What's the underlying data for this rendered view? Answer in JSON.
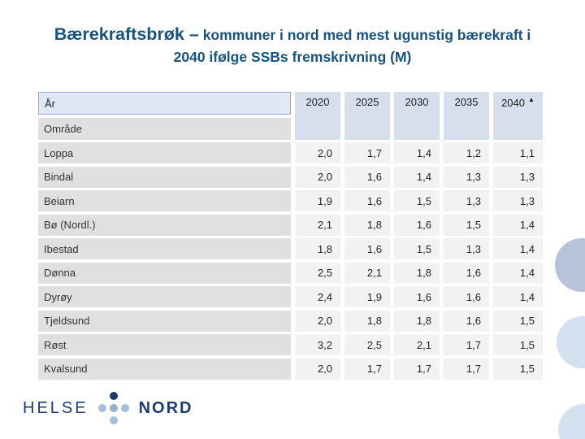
{
  "slide": {
    "title": {
      "part1": "Bærekraftsbrøk –",
      "part2": "kommuner i nord med mest ugunstig bærekraft i",
      "line2": "2040 ifølge SSBs fremskrivning (M)"
    },
    "logo": {
      "left": "HELSE",
      "right": "NORD"
    },
    "colors": {
      "title_blue": "#17537d",
      "logo_navy": "#1e3c6e",
      "logo_light_dot": "#a4bedb",
      "year_header_bg": "#d7deee",
      "corner_cell_bg": "#dfe8f5",
      "corner_cell_border": "#95a9cc",
      "name_cell_bg": "#e0e0e0",
      "value_cell_bg": "#f2f2f2",
      "circle_dark": "#b7c3d9",
      "circle_light": "#d3e1f1"
    }
  },
  "table": {
    "corner_label": "År",
    "area_label": "Område",
    "years": [
      "2020",
      "2025",
      "2030",
      "2035",
      "2040"
    ],
    "sorted_year_index": 4,
    "sort_icon": "▲",
    "rows": [
      {
        "name": "Loppa",
        "values": [
          "2,0",
          "1,7",
          "1,4",
          "1,2",
          "1,1"
        ]
      },
      {
        "name": "Bindal",
        "values": [
          "2,0",
          "1,6",
          "1,4",
          "1,3",
          "1,3"
        ]
      },
      {
        "name": "Beiarn",
        "values": [
          "1,9",
          "1,6",
          "1,5",
          "1,3",
          "1,3"
        ]
      },
      {
        "name": "Bø (Nordl.)",
        "values": [
          "2,1",
          "1,8",
          "1,6",
          "1,5",
          "1,4"
        ]
      },
      {
        "name": "Ibestad",
        "values": [
          "1,8",
          "1,6",
          "1,5",
          "1,3",
          "1,4"
        ]
      },
      {
        "name": "Dønna",
        "values": [
          "2,5",
          "2,1",
          "1,8",
          "1,6",
          "1,4"
        ]
      },
      {
        "name": "Dyrøy",
        "values": [
          "2,4",
          "1,9",
          "1,6",
          "1,6",
          "1,4"
        ]
      },
      {
        "name": "Tjeldsund",
        "values": [
          "2,0",
          "1,8",
          "1,8",
          "1,6",
          "1,5"
        ]
      },
      {
        "name": "Røst",
        "values": [
          "3,2",
          "2,5",
          "2,1",
          "1,7",
          "1,5"
        ]
      },
      {
        "name": "Kvalsund",
        "values": [
          "2,0",
          "1,7",
          "1,7",
          "1,7",
          "1,5"
        ]
      }
    ]
  }
}
